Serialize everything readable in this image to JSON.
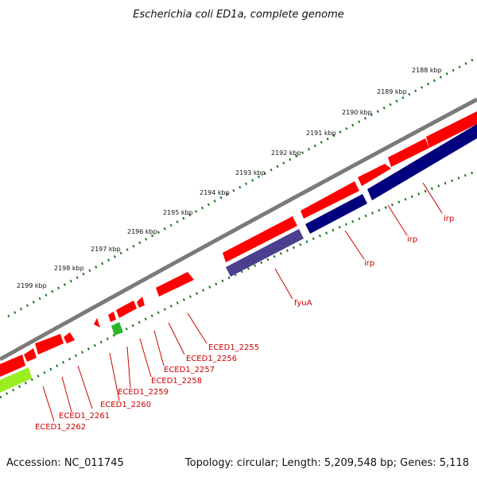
{
  "title": "Escherichia coli ED1a, complete genome",
  "footer": {
    "accession": "Accession: NC_011745",
    "summary": "Topology: circular; Length: 5,209,548 bp; Genes: 5,118"
  },
  "colors": {
    "backbone": "#7a7a7a",
    "forward_cds": "#ff0000",
    "reverse_dark": "#00007f",
    "reverse_purple": "#4b3f8f",
    "small_green": "#2db52d",
    "light_green": "#99ee22",
    "tick_green": "#1c7a1c",
    "label_red": "#cc0000"
  },
  "ticks": [
    "2188 kbp",
    "2189 kbp",
    "2190 kbp",
    "2191 kbp",
    "2192 kbp",
    "2193 kbp",
    "2194 kbp",
    "2195 kbp",
    "2196 kbp",
    "2197 kbp",
    "2198 kbp",
    "2199 kbp"
  ],
  "gene_labels": [
    "irp",
    "irp",
    "irp",
    "fyuA",
    "ECED1_2255",
    "ECED1_2256",
    "ECED1_2257",
    "ECED1_2258",
    "ECED1_2259",
    "ECED1_2260",
    "ECED1_2261",
    "ECED1_2262"
  ]
}
